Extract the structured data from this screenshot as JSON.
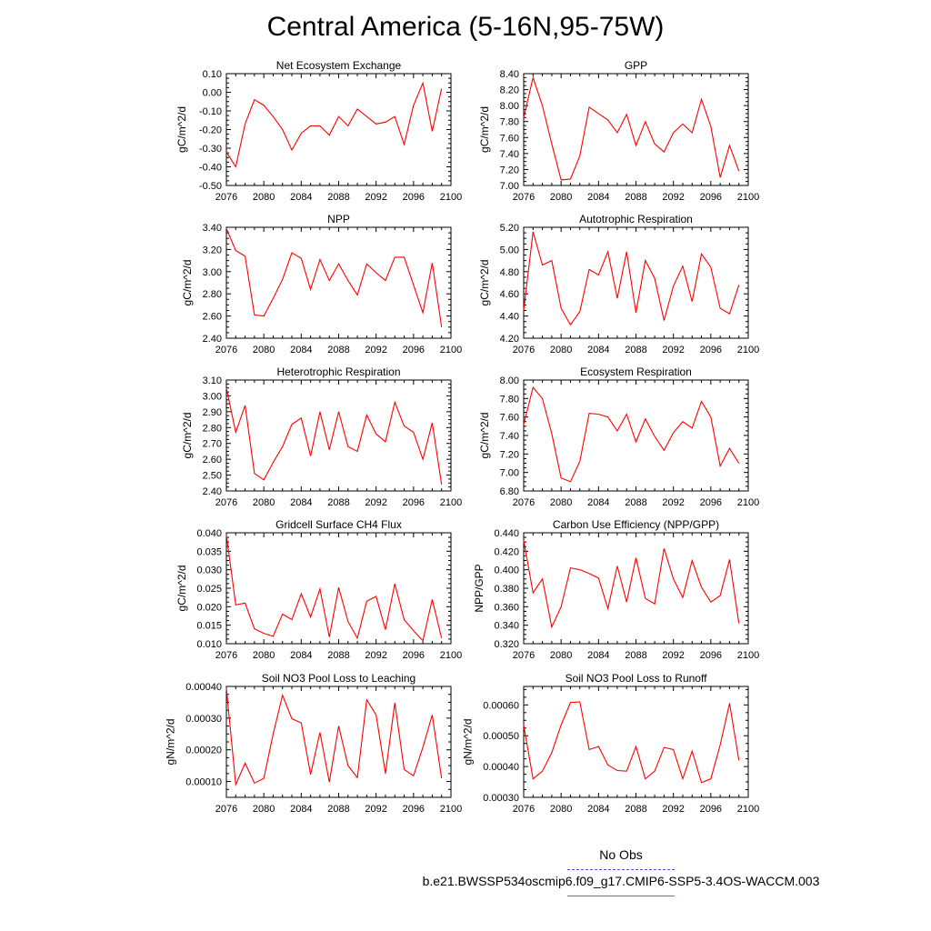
{
  "page": {
    "title": "Central America (5-16N,95-75W)"
  },
  "colors": {
    "series": "#ff0000",
    "axis": "#000000",
    "obs": "#4a4adb",
    "run_legend": "#e8473f"
  },
  "legend": {
    "obs_label": "No Obs",
    "run_label": "b.e21.BWSSP534oscmip6.f09_g17.CMIP6-SSP5-3.4OS-WACCM.003"
  },
  "chart_data": [
    {
      "type": "line",
      "title": "Net Ecosystem Exchange",
      "ylabel": "gC/m^2/d",
      "xlim": [
        2076,
        2100
      ],
      "xticks": [
        2076,
        2080,
        2084,
        2088,
        2092,
        2096,
        2100
      ],
      "ylim": [
        -0.5,
        0.1
      ],
      "yticks": [
        -0.5,
        -0.4,
        -0.3,
        -0.2,
        -0.1,
        0.0,
        0.1
      ],
      "ytick_labels": [
        "-0.50",
        "-0.40",
        "-0.30",
        "-0.20",
        "-0.10",
        "0.00",
        "0.10"
      ],
      "series": [
        {
          "name": "b.e21.BWSSP534oscmip6.f09_g17.CMIP6-SSP5-3.4OS-WACCM.003",
          "x": [
            2076,
            2077,
            2078,
            2079,
            2080,
            2081,
            2082,
            2083,
            2084,
            2085,
            2086,
            2087,
            2088,
            2089,
            2090,
            2091,
            2092,
            2093,
            2094,
            2095,
            2096,
            2097,
            2098,
            2099
          ],
          "values": [
            -0.32,
            -0.4,
            -0.17,
            -0.04,
            -0.07,
            -0.13,
            -0.2,
            -0.31,
            -0.22,
            -0.18,
            -0.18,
            -0.23,
            -0.13,
            -0.18,
            -0.09,
            -0.13,
            -0.17,
            -0.16,
            -0.13,
            -0.28,
            -0.07,
            0.05,
            -0.21,
            0.02
          ]
        }
      ]
    },
    {
      "type": "line",
      "title": "GPP",
      "ylabel": "gC/m^2/d",
      "xlim": [
        2076,
        2100
      ],
      "xticks": [
        2076,
        2080,
        2084,
        2088,
        2092,
        2096,
        2100
      ],
      "ylim": [
        7.0,
        8.4
      ],
      "yticks": [
        7.0,
        7.2,
        7.4,
        7.6,
        7.8,
        8.0,
        8.2,
        8.4
      ],
      "ytick_labels": [
        "7.00",
        "7.20",
        "7.40",
        "7.60",
        "7.80",
        "8.00",
        "8.20",
        "8.40"
      ],
      "series": [
        {
          "name": "b.e21.BWSSP534oscmip6.f09_g17.CMIP6-SSP5-3.4OS-WACCM.003",
          "x": [
            2076,
            2077,
            2078,
            2079,
            2080,
            2081,
            2082,
            2083,
            2084,
            2085,
            2086,
            2087,
            2088,
            2089,
            2090,
            2091,
            2092,
            2093,
            2094,
            2095,
            2096,
            2097,
            2098,
            2099
          ],
          "values": [
            7.85,
            8.35,
            8.0,
            7.52,
            7.07,
            7.08,
            7.37,
            7.98,
            7.9,
            7.82,
            7.66,
            7.89,
            7.5,
            7.8,
            7.52,
            7.42,
            7.66,
            7.77,
            7.66,
            8.08,
            7.74,
            7.1,
            7.5,
            7.18
          ]
        }
      ]
    },
    {
      "type": "line",
      "title": "NPP",
      "ylabel": "gC/m^2/d",
      "xlim": [
        2076,
        2100
      ],
      "xticks": [
        2076,
        2080,
        2084,
        2088,
        2092,
        2096,
        2100
      ],
      "ylim": [
        2.4,
        3.4
      ],
      "yticks": [
        2.4,
        2.6,
        2.8,
        3.0,
        3.2,
        3.4
      ],
      "ytick_labels": [
        "2.40",
        "2.60",
        "2.80",
        "3.00",
        "3.20",
        "3.40"
      ],
      "series": [
        {
          "name": "b.e21.BWSSP534oscmip6.f09_g17.CMIP6-SSP5-3.4OS-WACCM.003",
          "x": [
            2076,
            2077,
            2078,
            2079,
            2080,
            2081,
            2082,
            2083,
            2084,
            2085,
            2086,
            2087,
            2088,
            2089,
            2090,
            2091,
            2092,
            2093,
            2094,
            2095,
            2096,
            2097,
            2098,
            2099
          ],
          "values": [
            3.39,
            3.19,
            3.14,
            2.61,
            2.6,
            2.76,
            2.93,
            3.17,
            3.12,
            2.84,
            3.11,
            2.92,
            3.07,
            2.92,
            2.79,
            3.07,
            2.99,
            2.92,
            3.13,
            3.13,
            2.88,
            2.63,
            3.08,
            2.5
          ]
        }
      ]
    },
    {
      "type": "line",
      "title": "Autotrophic Respiration",
      "ylabel": "gC/m^2/d",
      "xlim": [
        2076,
        2100
      ],
      "xticks": [
        2076,
        2080,
        2084,
        2088,
        2092,
        2096,
        2100
      ],
      "ylim": [
        4.2,
        5.2
      ],
      "yticks": [
        4.2,
        4.4,
        4.6,
        4.8,
        5.0,
        5.2
      ],
      "ytick_labels": [
        "4.20",
        "4.40",
        "4.60",
        "4.80",
        "5.00",
        "5.20"
      ],
      "series": [
        {
          "name": "b.e21.BWSSP534oscmip6.f09_g17.CMIP6-SSP5-3.4OS-WACCM.003",
          "x": [
            2076,
            2077,
            2078,
            2079,
            2080,
            2081,
            2082,
            2083,
            2084,
            2085,
            2086,
            2087,
            2088,
            2089,
            2090,
            2091,
            2092,
            2093,
            2094,
            2095,
            2096,
            2097,
            2098,
            2099
          ],
          "values": [
            4.45,
            5.16,
            4.86,
            4.9,
            4.47,
            4.32,
            4.44,
            4.82,
            4.77,
            4.98,
            4.56,
            4.98,
            4.43,
            4.9,
            4.74,
            4.36,
            4.67,
            4.85,
            4.53,
            4.96,
            4.84,
            4.47,
            4.42,
            4.68
          ]
        }
      ]
    },
    {
      "type": "line",
      "title": "Heterotrophic Respiration",
      "ylabel": "gC/m^2/d",
      "xlim": [
        2076,
        2100
      ],
      "xticks": [
        2076,
        2080,
        2084,
        2088,
        2092,
        2096,
        2100
      ],
      "ylim": [
        2.4,
        3.1
      ],
      "yticks": [
        2.4,
        2.5,
        2.6,
        2.7,
        2.8,
        2.9,
        3.0,
        3.1
      ],
      "ytick_labels": [
        "2.40",
        "2.50",
        "2.60",
        "2.70",
        "2.80",
        "2.90",
        "3.00",
        "3.10"
      ],
      "series": [
        {
          "name": "b.e21.BWSSP534oscmip6.f09_g17.CMIP6-SSP5-3.4OS-WACCM.003",
          "x": [
            2076,
            2077,
            2078,
            2079,
            2080,
            2081,
            2082,
            2083,
            2084,
            2085,
            2086,
            2087,
            2088,
            2089,
            2090,
            2091,
            2092,
            2093,
            2094,
            2095,
            2096,
            2097,
            2098,
            2099
          ],
          "values": [
            3.05,
            2.77,
            2.94,
            2.51,
            2.47,
            2.58,
            2.68,
            2.82,
            2.86,
            2.62,
            2.9,
            2.66,
            2.9,
            2.68,
            2.65,
            2.88,
            2.76,
            2.71,
            2.96,
            2.81,
            2.77,
            2.6,
            2.83,
            2.44
          ]
        }
      ]
    },
    {
      "type": "line",
      "title": "Ecosystem Respiration",
      "ylabel": "gC/m^2/d",
      "xlim": [
        2076,
        2100
      ],
      "xticks": [
        2076,
        2080,
        2084,
        2088,
        2092,
        2096,
        2100
      ],
      "ylim": [
        6.8,
        8.0
      ],
      "yticks": [
        6.8,
        7.0,
        7.2,
        7.4,
        7.6,
        7.8,
        8.0
      ],
      "ytick_labels": [
        "6.80",
        "7.00",
        "7.20",
        "7.40",
        "7.60",
        "7.80",
        "8.00"
      ],
      "series": [
        {
          "name": "b.e21.BWSSP534oscmip6.f09_g17.CMIP6-SSP5-3.4OS-WACCM.003",
          "x": [
            2076,
            2077,
            2078,
            2079,
            2080,
            2081,
            2082,
            2083,
            2084,
            2085,
            2086,
            2087,
            2088,
            2089,
            2090,
            2091,
            2092,
            2093,
            2094,
            2095,
            2096,
            2097,
            2098,
            2099
          ],
          "values": [
            7.52,
            7.92,
            7.8,
            7.42,
            6.94,
            6.9,
            7.12,
            7.64,
            7.63,
            7.6,
            7.45,
            7.63,
            7.33,
            7.58,
            7.39,
            7.24,
            7.43,
            7.55,
            7.48,
            7.77,
            7.6,
            7.07,
            7.26,
            7.1
          ]
        }
      ]
    },
    {
      "type": "line",
      "title": "Gridcell Surface CH4 Flux",
      "ylabel": "gC/m^2/d",
      "xlim": [
        2076,
        2100
      ],
      "xticks": [
        2076,
        2080,
        2084,
        2088,
        2092,
        2096,
        2100
      ],
      "ylim": [
        0.01,
        0.04
      ],
      "yticks": [
        0.01,
        0.015,
        0.02,
        0.025,
        0.03,
        0.035,
        0.04
      ],
      "ytick_labels": [
        "0.010",
        "0.015",
        "0.020",
        "0.025",
        "0.030",
        "0.035",
        "0.040"
      ],
      "series": [
        {
          "name": "b.e21.BWSSP534oscmip6.f09_g17.CMIP6-SSP5-3.4OS-WACCM.003",
          "x": [
            2076,
            2077,
            2078,
            2079,
            2080,
            2081,
            2082,
            2083,
            2084,
            2085,
            2086,
            2087,
            2088,
            2089,
            2090,
            2091,
            2092,
            2093,
            2094,
            2095,
            2096,
            2097,
            2098,
            2099
          ],
          "values": [
            0.0395,
            0.0205,
            0.021,
            0.014,
            0.0128,
            0.012,
            0.018,
            0.0165,
            0.0235,
            0.0172,
            0.0248,
            0.0118,
            0.0252,
            0.016,
            0.0115,
            0.0215,
            0.0228,
            0.0138,
            0.0262,
            0.0165,
            0.0135,
            0.0108,
            0.022,
            0.0115
          ]
        }
      ]
    },
    {
      "type": "line",
      "title": "Carbon Use Efficiency (NPP/GPP)",
      "ylabel": "NPP/GPP",
      "xlim": [
        2076,
        2100
      ],
      "xticks": [
        2076,
        2080,
        2084,
        2088,
        2092,
        2096,
        2100
      ],
      "ylim": [
        0.32,
        0.44
      ],
      "yticks": [
        0.32,
        0.34,
        0.36,
        0.38,
        0.4,
        0.42,
        0.44
      ],
      "ytick_labels": [
        "0.320",
        "0.340",
        "0.360",
        "0.380",
        "0.400",
        "0.420",
        "0.440"
      ],
      "series": [
        {
          "name": "b.e21.BWSSP534oscmip6.f09_g17.CMIP6-SSP5-3.4OS-WACCM.003",
          "x": [
            2076,
            2077,
            2078,
            2079,
            2080,
            2081,
            2082,
            2083,
            2084,
            2085,
            2086,
            2087,
            2088,
            2089,
            2090,
            2091,
            2092,
            2093,
            2094,
            2095,
            2096,
            2097,
            2098,
            2099
          ],
          "values": [
            0.432,
            0.375,
            0.39,
            0.338,
            0.36,
            0.402,
            0.4,
            0.396,
            0.391,
            0.358,
            0.404,
            0.365,
            0.413,
            0.369,
            0.363,
            0.423,
            0.39,
            0.37,
            0.41,
            0.381,
            0.365,
            0.372,
            0.411,
            0.342
          ]
        }
      ]
    },
    {
      "type": "line",
      "title": "Soil NO3 Pool Loss to Leaching",
      "ylabel": "gN/m^2/d",
      "xlim": [
        2076,
        2100
      ],
      "xticks": [
        2076,
        2080,
        2084,
        2088,
        2092,
        2096,
        2100
      ],
      "ylim": [
        5e-05,
        0.0004
      ],
      "yticks": [
        0.0001,
        0.0002,
        0.0003,
        0.0004
      ],
      "ytick_labels": [
        "0.00010",
        "0.00020",
        "0.00030",
        "0.00040"
      ],
      "series": [
        {
          "name": "b.e21.BWSSP534oscmip6.f09_g17.CMIP6-SSP5-3.4OS-WACCM.003",
          "x": [
            2076,
            2077,
            2078,
            2079,
            2080,
            2081,
            2082,
            2083,
            2084,
            2085,
            2086,
            2087,
            2088,
            2089,
            2090,
            2091,
            2092,
            2093,
            2094,
            2095,
            2096,
            2097,
            2098,
            2099
          ],
          "values": [
            0.000395,
            9e-05,
            0.000158,
            9.5e-05,
            0.00011,
            0.00025,
            0.000372,
            0.000298,
            0.000285,
            0.000122,
            0.000255,
            9.8e-05,
            0.000275,
            0.00015,
            0.000112,
            0.000358,
            0.00031,
            0.000125,
            0.000348,
            0.000138,
            0.000118,
            0.000208,
            0.00031,
            0.00011
          ]
        }
      ]
    },
    {
      "type": "line",
      "title": "Soil NO3 Pool Loss to Runoff",
      "ylabel": "gN/m^2/d",
      "xlim": [
        2076,
        2100
      ],
      "xticks": [
        2076,
        2080,
        2084,
        2088,
        2092,
        2096,
        2100
      ],
      "ylim": [
        0.0003,
        0.00066
      ],
      "yticks": [
        0.0003,
        0.0004,
        0.0005,
        0.0006
      ],
      "ytick_labels": [
        "0.00030",
        "0.00040",
        "0.00050",
        "0.00060"
      ],
      "series": [
        {
          "name": "b.e21.BWSSP534oscmip6.f09_g17.CMIP6-SSP5-3.4OS-WACCM.003",
          "x": [
            2076,
            2077,
            2078,
            2079,
            2080,
            2081,
            2082,
            2083,
            2084,
            2085,
            2086,
            2087,
            2088,
            2089,
            2090,
            2091,
            2092,
            2093,
            2094,
            2095,
            2096,
            2097,
            2098,
            2099
          ],
          "values": [
            0.000535,
            0.00036,
            0.000385,
            0.000445,
            0.000535,
            0.000608,
            0.00061,
            0.000455,
            0.000465,
            0.000405,
            0.000387,
            0.000385,
            0.000465,
            0.00036,
            0.000385,
            0.000462,
            0.000455,
            0.00036,
            0.00045,
            0.000348,
            0.00036,
            0.00047,
            0.000605,
            0.00042
          ]
        }
      ]
    }
  ]
}
